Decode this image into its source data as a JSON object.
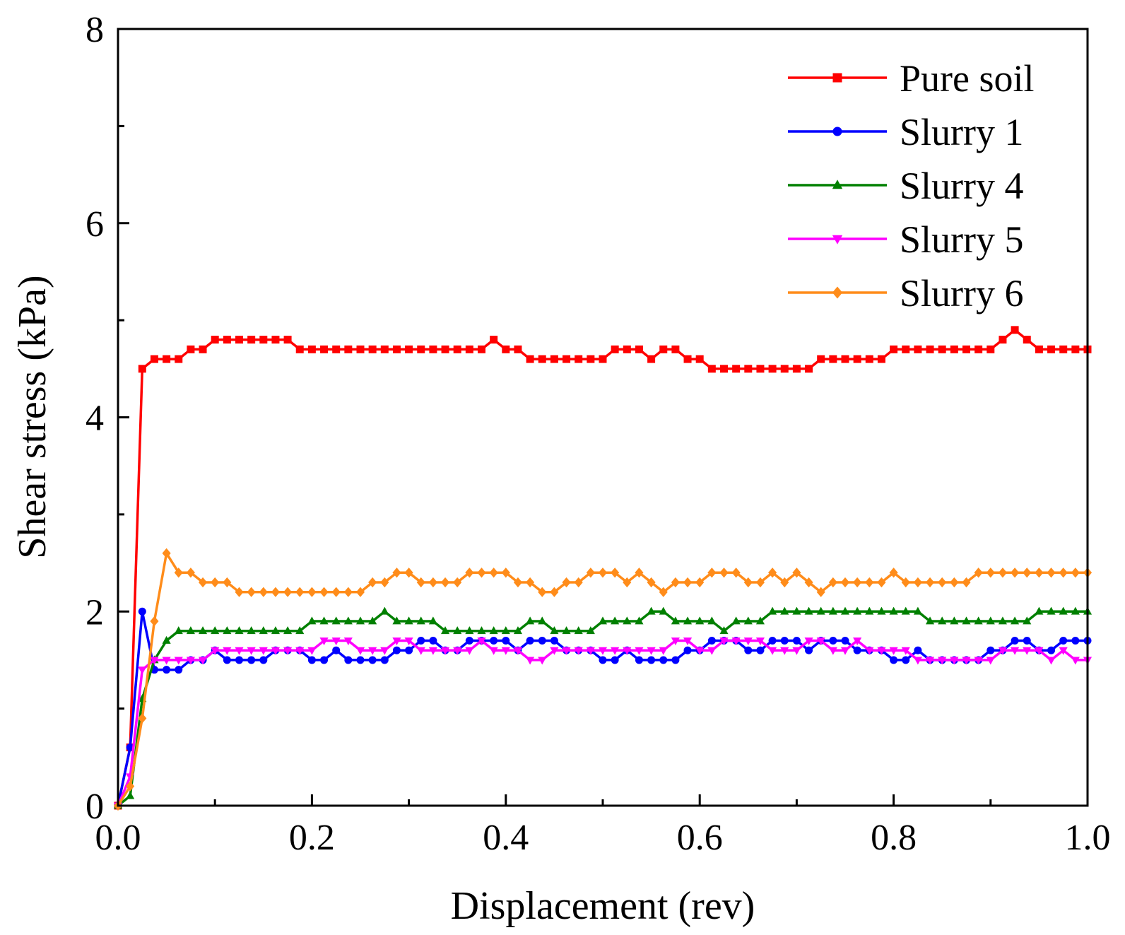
{
  "chart_data": {
    "type": "line",
    "title": "",
    "xlabel": "Displacement (rev)",
    "ylabel": "Shear stress (kPa)",
    "xlim": [
      0.0,
      1.0
    ],
    "ylim": [
      0,
      8
    ],
    "xticks": [
      "0.0",
      "0.2",
      "0.4",
      "0.6",
      "0.8",
      "1.0"
    ],
    "yticks": [
      "0",
      "2",
      "4",
      "6",
      "8"
    ],
    "legend_position": "top-right",
    "grid": false,
    "x": [
      0.0,
      0.0125,
      0.025,
      0.0375,
      0.05,
      0.0625,
      0.075,
      0.0875,
      0.1,
      0.1125,
      0.125,
      0.1375,
      0.15,
      0.1625,
      0.175,
      0.1875,
      0.2,
      0.2125,
      0.225,
      0.2375,
      0.25,
      0.2625,
      0.275,
      0.2875,
      0.3,
      0.3125,
      0.325,
      0.3375,
      0.35,
      0.3625,
      0.375,
      0.3875,
      0.4,
      0.4125,
      0.425,
      0.4375,
      0.45,
      0.4625,
      0.475,
      0.4875,
      0.5,
      0.5125,
      0.525,
      0.5375,
      0.55,
      0.5625,
      0.575,
      0.5875,
      0.6,
      0.6125,
      0.625,
      0.6375,
      0.65,
      0.6625,
      0.675,
      0.6875,
      0.7,
      0.7125,
      0.725,
      0.7375,
      0.75,
      0.7625,
      0.775,
      0.7875,
      0.8,
      0.8125,
      0.825,
      0.8375,
      0.85,
      0.8625,
      0.875,
      0.8875,
      0.9,
      0.9125,
      0.925,
      0.9375,
      0.95,
      0.9625,
      0.975,
      0.9875,
      1.0
    ],
    "series": [
      {
        "name": "Pure soil",
        "color": "#ff0000",
        "marker": "square",
        "values": [
          0.0,
          0.6,
          4.5,
          4.6,
          4.6,
          4.6,
          4.7,
          4.7,
          4.8,
          4.8,
          4.8,
          4.8,
          4.8,
          4.8,
          4.8,
          4.7,
          4.7,
          4.7,
          4.7,
          4.7,
          4.7,
          4.7,
          4.7,
          4.7,
          4.7,
          4.7,
          4.7,
          4.7,
          4.7,
          4.7,
          4.7,
          4.8,
          4.7,
          4.7,
          4.6,
          4.6,
          4.6,
          4.6,
          4.6,
          4.6,
          4.6,
          4.7,
          4.7,
          4.7,
          4.6,
          4.7,
          4.7,
          4.6,
          4.6,
          4.5,
          4.5,
          4.5,
          4.5,
          4.5,
          4.5,
          4.5,
          4.5,
          4.5,
          4.6,
          4.6,
          4.6,
          4.6,
          4.6,
          4.6,
          4.7,
          4.7,
          4.7,
          4.7,
          4.7,
          4.7,
          4.7,
          4.7,
          4.7,
          4.8,
          4.9,
          4.8,
          4.7,
          4.7,
          4.7,
          4.7,
          4.7
        ]
      },
      {
        "name": "Slurry 1",
        "color": "#0000ff",
        "marker": "circle",
        "values": [
          0.0,
          0.6,
          2.0,
          1.4,
          1.4,
          1.4,
          1.5,
          1.5,
          1.6,
          1.5,
          1.5,
          1.5,
          1.5,
          1.6,
          1.6,
          1.6,
          1.5,
          1.5,
          1.6,
          1.5,
          1.5,
          1.5,
          1.5,
          1.6,
          1.6,
          1.7,
          1.7,
          1.6,
          1.6,
          1.7,
          1.7,
          1.7,
          1.7,
          1.6,
          1.7,
          1.7,
          1.7,
          1.6,
          1.6,
          1.6,
          1.5,
          1.5,
          1.6,
          1.5,
          1.5,
          1.5,
          1.5,
          1.6,
          1.6,
          1.7,
          1.7,
          1.7,
          1.6,
          1.6,
          1.7,
          1.7,
          1.7,
          1.6,
          1.7,
          1.7,
          1.7,
          1.6,
          1.6,
          1.6,
          1.5,
          1.5,
          1.6,
          1.5,
          1.5,
          1.5,
          1.5,
          1.5,
          1.6,
          1.6,
          1.7,
          1.7,
          1.6,
          1.6,
          1.7,
          1.7,
          1.7
        ]
      },
      {
        "name": "Slurry 4",
        "color": "#008000",
        "marker": "triangle-up",
        "values": [
          0.0,
          0.1,
          1.1,
          1.5,
          1.7,
          1.8,
          1.8,
          1.8,
          1.8,
          1.8,
          1.8,
          1.8,
          1.8,
          1.8,
          1.8,
          1.8,
          1.9,
          1.9,
          1.9,
          1.9,
          1.9,
          1.9,
          2.0,
          1.9,
          1.9,
          1.9,
          1.9,
          1.8,
          1.8,
          1.8,
          1.8,
          1.8,
          1.8,
          1.8,
          1.9,
          1.9,
          1.8,
          1.8,
          1.8,
          1.8,
          1.9,
          1.9,
          1.9,
          1.9,
          2.0,
          2.0,
          1.9,
          1.9,
          1.9,
          1.9,
          1.8,
          1.9,
          1.9,
          1.9,
          2.0,
          2.0,
          2.0,
          2.0,
          2.0,
          2.0,
          2.0,
          2.0,
          2.0,
          2.0,
          2.0,
          2.0,
          2.0,
          1.9,
          1.9,
          1.9,
          1.9,
          1.9,
          1.9,
          1.9,
          1.9,
          1.9,
          2.0,
          2.0,
          2.0,
          2.0,
          2.0
        ]
      },
      {
        "name": "Slurry 5",
        "color": "#ff00ff",
        "marker": "triangle-down",
        "values": [
          0.0,
          0.3,
          1.4,
          1.5,
          1.5,
          1.5,
          1.5,
          1.5,
          1.6,
          1.6,
          1.6,
          1.6,
          1.6,
          1.6,
          1.6,
          1.6,
          1.6,
          1.7,
          1.7,
          1.7,
          1.6,
          1.6,
          1.6,
          1.7,
          1.7,
          1.6,
          1.6,
          1.6,
          1.6,
          1.6,
          1.7,
          1.6,
          1.6,
          1.6,
          1.5,
          1.5,
          1.6,
          1.6,
          1.6,
          1.6,
          1.6,
          1.6,
          1.6,
          1.6,
          1.6,
          1.6,
          1.7,
          1.7,
          1.6,
          1.6,
          1.7,
          1.7,
          1.7,
          1.7,
          1.6,
          1.6,
          1.6,
          1.7,
          1.7,
          1.6,
          1.6,
          1.7,
          1.6,
          1.6,
          1.6,
          1.6,
          1.5,
          1.5,
          1.5,
          1.5,
          1.5,
          1.5,
          1.5,
          1.6,
          1.6,
          1.6,
          1.6,
          1.5,
          1.6,
          1.5,
          1.5
        ]
      },
      {
        "name": "Slurry 6",
        "color": "#ff8c1a",
        "marker": "diamond",
        "values": [
          0.0,
          0.2,
          0.9,
          1.9,
          2.6,
          2.4,
          2.4,
          2.3,
          2.3,
          2.3,
          2.2,
          2.2,
          2.2,
          2.2,
          2.2,
          2.2,
          2.2,
          2.2,
          2.2,
          2.2,
          2.2,
          2.3,
          2.3,
          2.4,
          2.4,
          2.3,
          2.3,
          2.3,
          2.3,
          2.4,
          2.4,
          2.4,
          2.4,
          2.3,
          2.3,
          2.2,
          2.2,
          2.3,
          2.3,
          2.4,
          2.4,
          2.4,
          2.3,
          2.4,
          2.3,
          2.2,
          2.3,
          2.3,
          2.3,
          2.4,
          2.4,
          2.4,
          2.3,
          2.3,
          2.4,
          2.3,
          2.4,
          2.3,
          2.2,
          2.3,
          2.3,
          2.3,
          2.3,
          2.3,
          2.4,
          2.3,
          2.3,
          2.3,
          2.3,
          2.3,
          2.3,
          2.4,
          2.4,
          2.4,
          2.4,
          2.4,
          2.4,
          2.4,
          2.4,
          2.4,
          2.4
        ]
      }
    ]
  }
}
